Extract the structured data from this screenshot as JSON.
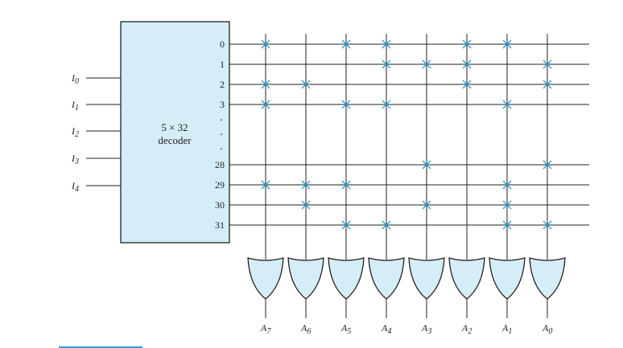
{
  "diagram": {
    "decoder": {
      "line1": "5 × 32",
      "line2": "decoder"
    },
    "inputs": [
      {
        "symbol": "I",
        "sub": "0"
      },
      {
        "symbol": "I",
        "sub": "1"
      },
      {
        "symbol": "I",
        "sub": "2"
      },
      {
        "symbol": "I",
        "sub": "3"
      },
      {
        "symbol": "I",
        "sub": "4"
      }
    ],
    "output_rows": [
      {
        "label": "0",
        "marks": [
          7,
          5,
          4,
          2,
          1
        ]
      },
      {
        "label": "1",
        "marks": [
          4,
          3,
          2,
          0
        ]
      },
      {
        "label": "2",
        "marks": [
          7,
          6,
          2,
          0
        ]
      },
      {
        "label": "3",
        "marks": [
          7,
          5,
          4,
          1
        ]
      },
      {
        "label": "28",
        "marks": [
          3,
          0
        ]
      },
      {
        "label": "29",
        "marks": [
          7,
          6,
          5,
          1
        ]
      },
      {
        "label": "30",
        "marks": [
          6,
          3,
          1
        ]
      },
      {
        "label": "31",
        "marks": [
          5,
          4,
          1,
          0
        ]
      }
    ],
    "ellipsis": ".",
    "gate_outputs": [
      {
        "symbol": "A",
        "sub": "7"
      },
      {
        "symbol": "A",
        "sub": "6"
      },
      {
        "symbol": "A",
        "sub": "5"
      },
      {
        "symbol": "A",
        "sub": "4"
      },
      {
        "symbol": "A",
        "sub": "3"
      },
      {
        "symbol": "A",
        "sub": "2"
      },
      {
        "symbol": "A",
        "sub": "1"
      },
      {
        "symbol": "A",
        "sub": "0"
      }
    ]
  },
  "colors": {
    "fill": "#d4edf6",
    "mark": "#2a9fd6",
    "line": "#231f20"
  }
}
